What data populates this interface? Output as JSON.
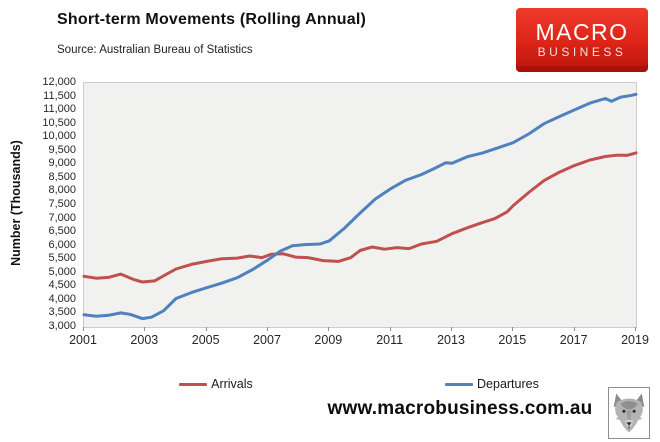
{
  "header": {
    "title": "Short-term Movements (Rolling Annual)",
    "source": "Source: Australian Bureau of Statistics",
    "logo": {
      "line1": "MACRO",
      "line2": "BUSINESS",
      "bg_color": "#dc2417"
    }
  },
  "chart_data": {
    "type": "line",
    "title": "Short-term Movements (Rolling Annual)",
    "xlabel": "",
    "ylabel": "Number (Thousands)",
    "ylim": [
      3000,
      12000
    ],
    "y_tick_step": 500,
    "xlim": [
      2001,
      2019
    ],
    "x_ticks": [
      2001,
      2003,
      2005,
      2007,
      2009,
      2011,
      2013,
      2015,
      2017,
      2019
    ],
    "grid": false,
    "legend_position": "bottom",
    "plot_background": "#f1f1ef",
    "series": [
      {
        "name": "Arrivals",
        "color": "#c0504d",
        "points": [
          [
            2001.0,
            4870
          ],
          [
            2001.4,
            4800
          ],
          [
            2001.8,
            4830
          ],
          [
            2002.2,
            4950
          ],
          [
            2002.6,
            4760
          ],
          [
            2002.9,
            4660
          ],
          [
            2003.3,
            4700
          ],
          [
            2003.7,
            4950
          ],
          [
            2004.0,
            5140
          ],
          [
            2004.5,
            5310
          ],
          [
            2005.0,
            5420
          ],
          [
            2005.5,
            5520
          ],
          [
            2006.0,
            5540
          ],
          [
            2006.4,
            5620
          ],
          [
            2006.8,
            5560
          ],
          [
            2007.1,
            5680
          ],
          [
            2007.5,
            5700
          ],
          [
            2007.9,
            5580
          ],
          [
            2008.3,
            5560
          ],
          [
            2008.8,
            5450
          ],
          [
            2009.3,
            5420
          ],
          [
            2009.7,
            5560
          ],
          [
            2010.0,
            5820
          ],
          [
            2010.4,
            5950
          ],
          [
            2010.8,
            5870
          ],
          [
            2011.2,
            5930
          ],
          [
            2011.6,
            5890
          ],
          [
            2012.0,
            6060
          ],
          [
            2012.5,
            6160
          ],
          [
            2013.0,
            6440
          ],
          [
            2013.5,
            6660
          ],
          [
            2014.0,
            6860
          ],
          [
            2014.4,
            7000
          ],
          [
            2014.8,
            7250
          ],
          [
            2015.0,
            7480
          ],
          [
            2015.5,
            7960
          ],
          [
            2016.0,
            8400
          ],
          [
            2016.5,
            8710
          ],
          [
            2017.0,
            8960
          ],
          [
            2017.5,
            9160
          ],
          [
            2018.0,
            9290
          ],
          [
            2018.4,
            9340
          ],
          [
            2018.7,
            9330
          ],
          [
            2019.0,
            9420
          ]
        ]
      },
      {
        "name": "Departures",
        "color": "#4f81bd",
        "points": [
          [
            2001.0,
            3450
          ],
          [
            2001.4,
            3400
          ],
          [
            2001.8,
            3430
          ],
          [
            2002.2,
            3520
          ],
          [
            2002.5,
            3470
          ],
          [
            2002.9,
            3310
          ],
          [
            2003.2,
            3360
          ],
          [
            2003.6,
            3600
          ],
          [
            2004.0,
            4050
          ],
          [
            2004.5,
            4270
          ],
          [
            2005.0,
            4450
          ],
          [
            2005.5,
            4620
          ],
          [
            2006.0,
            4820
          ],
          [
            2006.5,
            5120
          ],
          [
            2007.0,
            5480
          ],
          [
            2007.4,
            5800
          ],
          [
            2007.8,
            6000
          ],
          [
            2008.2,
            6040
          ],
          [
            2008.7,
            6060
          ],
          [
            2009.0,
            6180
          ],
          [
            2009.5,
            6650
          ],
          [
            2010.0,
            7200
          ],
          [
            2010.5,
            7720
          ],
          [
            2011.0,
            8100
          ],
          [
            2011.5,
            8420
          ],
          [
            2012.0,
            8620
          ],
          [
            2012.4,
            8830
          ],
          [
            2012.8,
            9060
          ],
          [
            2013.0,
            9040
          ],
          [
            2013.5,
            9280
          ],
          [
            2014.0,
            9420
          ],
          [
            2014.5,
            9610
          ],
          [
            2015.0,
            9800
          ],
          [
            2015.5,
            10120
          ],
          [
            2016.0,
            10500
          ],
          [
            2016.5,
            10760
          ],
          [
            2017.0,
            11010
          ],
          [
            2017.5,
            11260
          ],
          [
            2018.0,
            11430
          ],
          [
            2018.2,
            11330
          ],
          [
            2018.5,
            11480
          ],
          [
            2018.8,
            11530
          ],
          [
            2019.0,
            11580
          ]
        ]
      }
    ]
  },
  "footer": {
    "url": "www.macrobusiness.com.au",
    "wolf_logo_name": "wolf-head-icon"
  }
}
